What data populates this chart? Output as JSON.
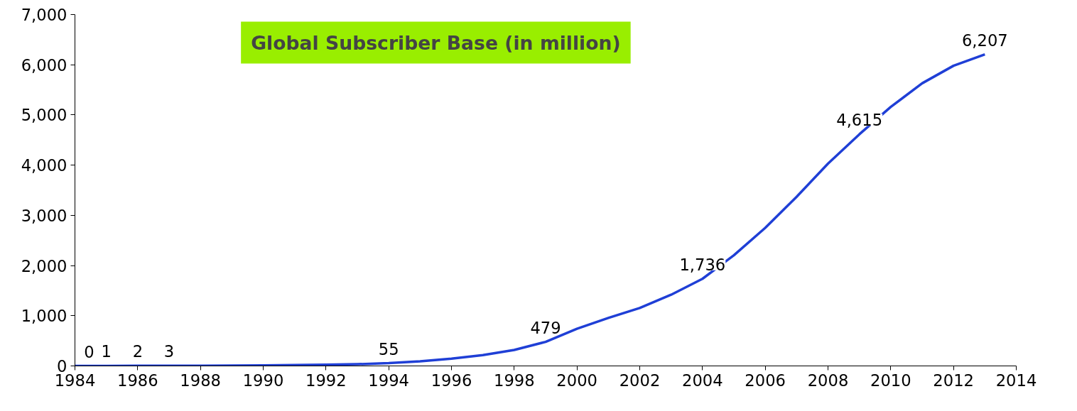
{
  "chart_data": {
    "type": "line",
    "title": "Global Subscriber Base (in million)",
    "x": [
      1984,
      1985,
      1986,
      1987,
      1988,
      1989,
      1990,
      1991,
      1992,
      1993,
      1994,
      1995,
      1996,
      1997,
      1998,
      1999,
      2000,
      2001,
      2002,
      2003,
      2004,
      2005,
      2006,
      2007,
      2008,
      2009,
      2010,
      2011,
      2012,
      2013
    ],
    "series": [
      {
        "color": "#1f3fd6",
        "values": [
          0,
          1,
          2,
          3,
          4,
          7,
          11,
          16,
          23,
          34,
          55,
          91,
          145,
          215,
          318,
          479,
          740,
          955,
          1155,
          1418,
          1736,
          2205,
          2750,
          3370,
          4030,
          4615,
          5160,
          5630,
          5980,
          6207
        ],
        "value_labels": [
          "0",
          "1",
          "2",
          "3",
          null,
          null,
          null,
          null,
          null,
          null,
          "55",
          null,
          null,
          null,
          null,
          "479",
          null,
          null,
          null,
          null,
          "1,736",
          null,
          null,
          null,
          null,
          "4,615",
          null,
          null,
          null,
          "6,207"
        ]
      }
    ],
    "xlim": [
      1984,
      2014
    ],
    "xticks": [
      1984,
      1986,
      1988,
      1990,
      1992,
      1994,
      1996,
      1998,
      2000,
      2002,
      2004,
      2006,
      2008,
      2010,
      2012,
      2014
    ],
    "ylim": [
      0,
      7000
    ],
    "yticks": [
      {
        "value": 0,
        "label": "0"
      },
      {
        "value": 1000,
        "label": "1,000"
      },
      {
        "value": 2000,
        "label": "2,000"
      },
      {
        "value": 3000,
        "label": "3,000"
      },
      {
        "value": 4000,
        "label": "4,000"
      },
      {
        "value": 5000,
        "label": "5,000"
      },
      {
        "value": 6000,
        "label": "6,000"
      },
      {
        "value": 7000,
        "label": "7,000"
      }
    ],
    "grid": false,
    "marker": "none",
    "line_style": "solid"
  }
}
